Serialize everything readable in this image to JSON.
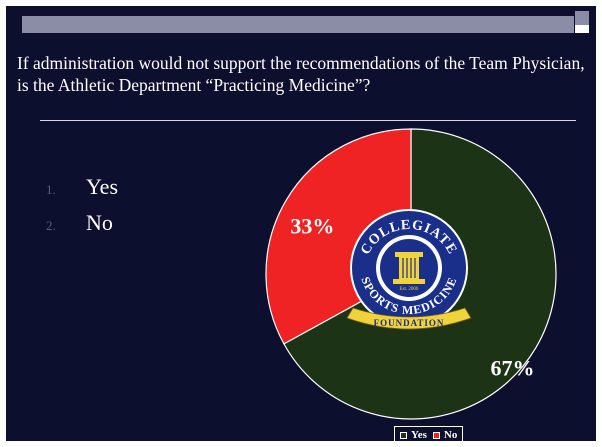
{
  "question": "If administration would not support the recommendations of the Team Physician, is the Athletic Department “Practicing Medicine”?",
  "options": [
    {
      "number": "1.",
      "label": "Yes"
    },
    {
      "number": "2.",
      "label": "No"
    }
  ],
  "logo": {
    "top_text": "COLLEGIATE",
    "middle_text": "SPORTS MEDICINE",
    "ribbon_text": "FOUNDATION",
    "est_text": "Est. 2006"
  },
  "colors": {
    "background": "#0d0f2e",
    "yes": "#1d3316",
    "no": "#ef2323",
    "logo_blue": "#1a2f8a",
    "logo_gold": "#f0d23a"
  },
  "chart_data": {
    "type": "pie",
    "categories": [
      "Yes",
      "No"
    ],
    "values": [
      67,
      33
    ],
    "value_labels": [
      "67%",
      "33%"
    ],
    "start_angle_deg": 0,
    "direction": "clockwise",
    "legend": {
      "position": "bottom-right",
      "entries": [
        "Yes",
        "No"
      ]
    }
  }
}
